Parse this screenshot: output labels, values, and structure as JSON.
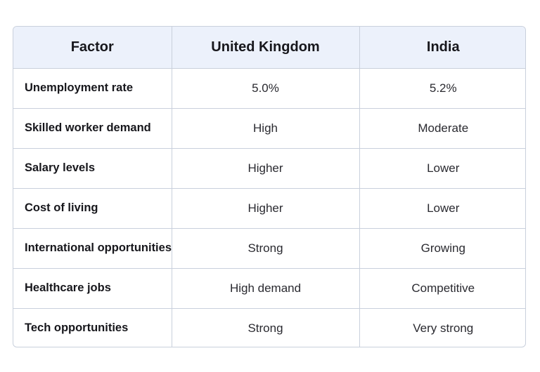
{
  "table": {
    "headers": [
      "Factor",
      "United Kingdom",
      "India"
    ],
    "rows": [
      [
        "Unemployment rate",
        "5.0%",
        "5.2%"
      ],
      [
        "Skilled worker demand",
        "High",
        "Moderate"
      ],
      [
        "Salary levels",
        "Higher",
        "Lower"
      ],
      [
        "Cost of living",
        "Higher",
        "Lower"
      ],
      [
        "International opportunities",
        "Strong",
        "Growing"
      ],
      [
        "Healthcare jobs",
        "High demand",
        "Competitive"
      ],
      [
        "Tech opportunities",
        "Strong",
        "Very strong"
      ]
    ]
  }
}
